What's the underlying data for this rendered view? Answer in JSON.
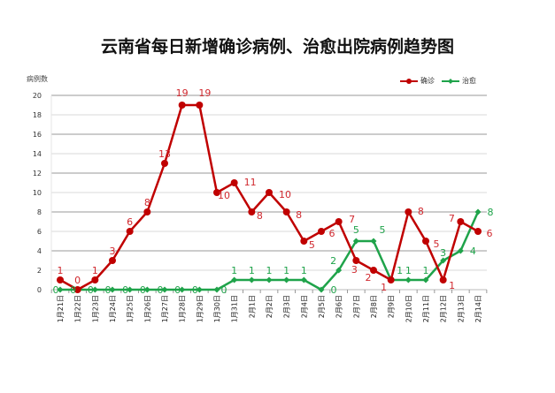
{
  "title": "云南省每日新增确诊病例、治愈出院病例趋势图",
  "chart_data": {
    "type": "line",
    "title": "云南省每日新增确诊病例、治愈出院病例趋势图",
    "xlabel": "",
    "ylabel": "病例数",
    "ylim": [
      0,
      20
    ],
    "yticks": [
      0,
      2,
      4,
      6,
      8,
      10,
      12,
      14,
      16,
      18,
      20
    ],
    "grid": true,
    "legend_position": "top-right",
    "categories": [
      "1月21日",
      "1月22日",
      "1月23日",
      "1月24日",
      "1月25日",
      "1月26日",
      "1月27日",
      "1月28日",
      "1月29日",
      "1月30日",
      "1月31日",
      "2月1日",
      "2月2日",
      "2月3日",
      "2月4日",
      "2月5日",
      "2月6日",
      "2月7日",
      "2月8日",
      "2月9日",
      "2月10日",
      "2月11日",
      "2月12日",
      "2月13日",
      "2月14日"
    ],
    "series": [
      {
        "name": "确诊",
        "color": "#c00000",
        "values": [
          1,
          0,
          1,
          3,
          6,
          8,
          13,
          19,
          19,
          10,
          11,
          8,
          10,
          8,
          5,
          6,
          7,
          3,
          2,
          1,
          8,
          5,
          1,
          7,
          6
        ]
      },
      {
        "name": "治愈",
        "color": "#1fa34a",
        "values": [
          0,
          0,
          0,
          0,
          0,
          0,
          0,
          0,
          0,
          0,
          1,
          1,
          1,
          1,
          1,
          0,
          2,
          5,
          5,
          1,
          1,
          1,
          3,
          4,
          8
        ]
      }
    ]
  },
  "legend": {
    "confirmed": "确诊",
    "cured": "治愈"
  }
}
